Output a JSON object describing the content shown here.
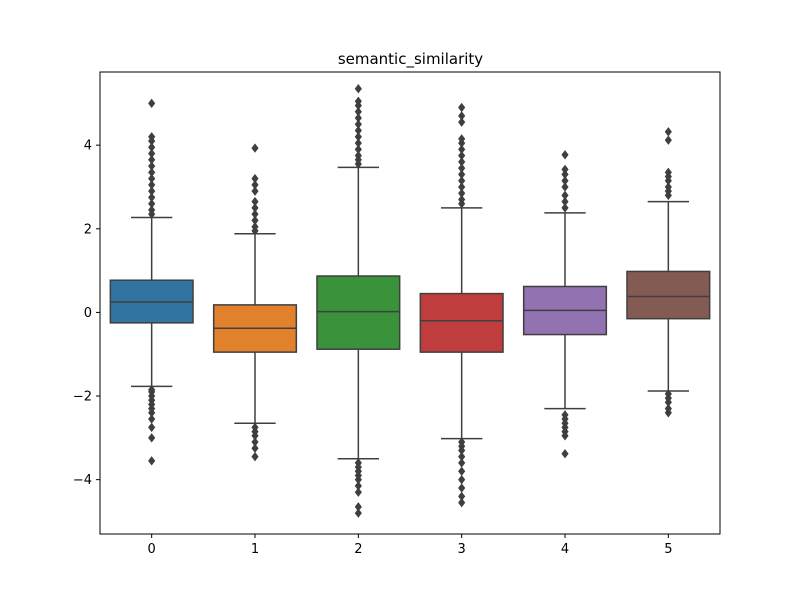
{
  "chart_data": {
    "type": "box",
    "title": "semantic_similarity",
    "xlabel": "",
    "ylabel": "",
    "categories": [
      "0",
      "1",
      "2",
      "3",
      "4",
      "5"
    ],
    "ylim": [
      -5.3,
      5.75
    ],
    "yticks": [
      -4,
      -2,
      0,
      2,
      4
    ],
    "ytick_labels": [
      "−4",
      "−2",
      "0",
      "2",
      "4"
    ],
    "grid": false,
    "boxes": [
      {
        "category": "0",
        "color": "#3274a1",
        "q1": -0.25,
        "median": 0.25,
        "q3": 0.77,
        "whisker_low": -1.77,
        "whisker_high": 2.27,
        "outliers": [
          -3.55,
          -3.0,
          -2.75,
          -2.55,
          -2.4,
          -2.3,
          -2.2,
          -2.1,
          -2.0,
          -1.9,
          -1.85,
          2.35,
          2.45,
          2.6,
          2.75,
          2.9,
          3.05,
          3.2,
          3.35,
          3.5,
          3.65,
          3.8,
          3.95,
          4.1,
          4.2,
          5.0
        ]
      },
      {
        "category": "1",
        "color": "#e1812c",
        "q1": -0.95,
        "median": -0.38,
        "q3": 0.18,
        "whisker_low": -2.65,
        "whisker_high": 1.88,
        "outliers": [
          -3.45,
          -3.25,
          -3.1,
          -2.95,
          -2.85,
          -2.75,
          1.95,
          2.05,
          2.2,
          2.35,
          2.5,
          2.65,
          2.9,
          3.05,
          3.2,
          3.93
        ]
      },
      {
        "category": "2",
        "color": "#3a923a",
        "q1": -0.88,
        "median": 0.02,
        "q3": 0.87,
        "whisker_low": -3.5,
        "whisker_high": 3.47,
        "outliers": [
          -4.8,
          -4.65,
          -4.3,
          -4.15,
          -4.0,
          -3.9,
          -3.8,
          -3.7,
          -3.6,
          3.55,
          3.65,
          3.75,
          3.9,
          4.05,
          4.2,
          4.35,
          4.5,
          4.65,
          4.8,
          4.95,
          5.05,
          5.35
        ]
      },
      {
        "category": "3",
        "color": "#c03d3e",
        "q1": -0.95,
        "median": -0.2,
        "q3": 0.45,
        "whisker_low": -3.02,
        "whisker_high": 2.5,
        "outliers": [
          -4.55,
          -4.4,
          -4.2,
          -4.0,
          -3.8,
          -3.6,
          -3.45,
          -3.3,
          -3.2,
          -3.1,
          2.6,
          2.7,
          2.85,
          3.0,
          3.15,
          3.3,
          3.45,
          3.6,
          3.75,
          3.9,
          4.05,
          4.15,
          4.55,
          4.7,
          4.9
        ]
      },
      {
        "category": "4",
        "color": "#9372b2",
        "q1": -0.53,
        "median": 0.05,
        "q3": 0.62,
        "whisker_low": -2.3,
        "whisker_high": 2.38,
        "outliers": [
          -3.38,
          -2.95,
          -2.85,
          -2.75,
          -2.65,
          -2.55,
          -2.45,
          2.5,
          2.65,
          2.8,
          3.0,
          3.15,
          3.3,
          3.42,
          3.77
        ]
      },
      {
        "category": "5",
        "color": "#845b53",
        "q1": -0.15,
        "median": 0.38,
        "q3": 0.98,
        "whisker_low": -1.88,
        "whisker_high": 2.65,
        "outliers": [
          -2.4,
          -2.3,
          -2.15,
          -2.05,
          -1.95,
          2.8,
          2.9,
          3.0,
          3.15,
          3.25,
          3.35,
          4.12,
          4.32
        ]
      }
    ]
  }
}
